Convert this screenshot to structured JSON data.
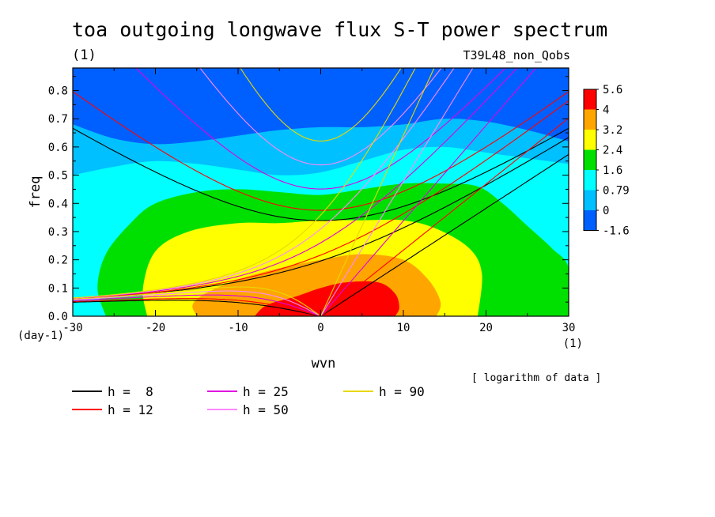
{
  "chart_data": {
    "type": "heatmap",
    "title": "toa outgoing longwave flux S-T power spectrum",
    "title_units": "(1)",
    "experiment": "T39L48_non_Qobs",
    "xlabel": "wvn",
    "ylabel": "freq",
    "x_units": "(1)",
    "y_units": "(day-1)",
    "xlim": [
      -30,
      30
    ],
    "ylim": [
      0,
      0.88
    ],
    "xticks": [
      -30,
      -20,
      -10,
      0,
      10,
      20,
      30
    ],
    "yticks": [
      0.0,
      0.1,
      0.2,
      0.3,
      0.4,
      0.5,
      0.6,
      0.7,
      0.8
    ],
    "xtick_labels": [
      "-30",
      "-20",
      "-10",
      "0",
      "10",
      "20",
      "30"
    ],
    "ytick_labels": [
      "0.0",
      "0.1",
      "0.2",
      "0.3",
      "0.4",
      "0.5",
      "0.6",
      "0.7",
      "0.8"
    ],
    "note": "[ logarithm of data ]",
    "colorbar": {
      "labels": [
        "5.6",
        "4",
        "3.2",
        "2.4",
        "1.6",
        "0.79",
        "0",
        "-1.6"
      ],
      "colors": [
        "#ff0000",
        "#ffa500",
        "#ffff00",
        "#00e000",
        "#00ffff",
        "#00c0ff",
        "#0060ff"
      ]
    },
    "contours": [
      {
        "level": "-1.6 to 0",
        "color": "#0060ff"
      },
      {
        "level": "0 to 0.79",
        "color": "#00c0ff",
        "boundary": [
          [
            -30,
            0.68
          ],
          [
            -25,
            0.63
          ],
          [
            -20,
            0.61
          ],
          [
            -15,
            0.62
          ],
          [
            -10,
            0.64
          ],
          [
            -5,
            0.66
          ],
          [
            0,
            0.67
          ],
          [
            5,
            0.67
          ],
          [
            10,
            0.68
          ],
          [
            15,
            0.7
          ],
          [
            20,
            0.69
          ],
          [
            25,
            0.66
          ],
          [
            30,
            0.62
          ]
        ]
      },
      {
        "level": "0.79 to 1.6",
        "color": "#00ffff",
        "boundary": [
          [
            -30,
            0.5
          ],
          [
            -25,
            0.53
          ],
          [
            -20,
            0.55
          ],
          [
            -15,
            0.54
          ],
          [
            -10,
            0.52
          ],
          [
            -5,
            0.5
          ],
          [
            0,
            0.51
          ],
          [
            5,
            0.55
          ],
          [
            10,
            0.59
          ],
          [
            15,
            0.6
          ],
          [
            20,
            0.58
          ],
          [
            25,
            0.56
          ],
          [
            30,
            0.54
          ]
        ]
      },
      {
        "level": "1.6 to 2.4",
        "color": "#00e000",
        "boundary": [
          [
            -26,
            0.0
          ],
          [
            -27,
            0.1
          ],
          [
            -26,
            0.22
          ],
          [
            -23,
            0.33
          ],
          [
            -20,
            0.4
          ],
          [
            -15,
            0.44
          ],
          [
            -10,
            0.45
          ],
          [
            -5,
            0.44
          ],
          [
            0,
            0.43
          ],
          [
            5,
            0.45
          ],
          [
            10,
            0.47
          ],
          [
            15,
            0.47
          ],
          [
            19,
            0.46
          ],
          [
            22,
            0.4
          ],
          [
            25,
            0.32
          ],
          [
            28,
            0.24
          ],
          [
            30,
            0.17
          ],
          [
            30,
            0.0
          ]
        ]
      },
      {
        "level": "2.4 to 3.2",
        "color": "#ffff00",
        "boundary": [
          [
            -21,
            0.0
          ],
          [
            -21.5,
            0.1
          ],
          [
            -20,
            0.23
          ],
          [
            -16,
            0.3
          ],
          [
            -10,
            0.33
          ],
          [
            -5,
            0.33
          ],
          [
            0,
            0.34
          ],
          [
            5,
            0.34
          ],
          [
            10,
            0.34
          ],
          [
            14,
            0.31
          ],
          [
            18,
            0.24
          ],
          [
            19.5,
            0.15
          ],
          [
            19,
            0.0
          ]
        ]
      },
      {
        "level": "3.2 to 4",
        "color": "#ffa500",
        "boundary": [
          [
            -15,
            0.0
          ],
          [
            -15.5,
            0.04
          ],
          [
            -14,
            0.08
          ],
          [
            -10,
            0.13
          ],
          [
            -5,
            0.17
          ],
          [
            0,
            0.2
          ],
          [
            5,
            0.22
          ],
          [
            10,
            0.2
          ],
          [
            13,
            0.13
          ],
          [
            14.5,
            0.05
          ],
          [
            14,
            0.0
          ]
        ]
      },
      {
        "level": "4 to 5.6",
        "color": "#ff0000",
        "boundary": [
          [
            -8,
            0.0
          ],
          [
            -6.5,
            0.04
          ],
          [
            -3,
            0.07
          ],
          [
            0,
            0.1
          ],
          [
            3,
            0.12
          ],
          [
            7,
            0.12
          ],
          [
            9,
            0.08
          ],
          [
            9.5,
            0.03
          ],
          [
            9,
            0.0
          ]
        ]
      }
    ],
    "series": [
      {
        "name": "h =  8",
        "color": "#000000"
      },
      {
        "name": "h = 12",
        "color": "#ff0000"
      },
      {
        "name": "h = 25",
        "color": "#e000e0"
      },
      {
        "name": "h = 50",
        "color": "#ff88ff"
      },
      {
        "name": "h = 90",
        "color": "#e8d800"
      }
    ]
  }
}
